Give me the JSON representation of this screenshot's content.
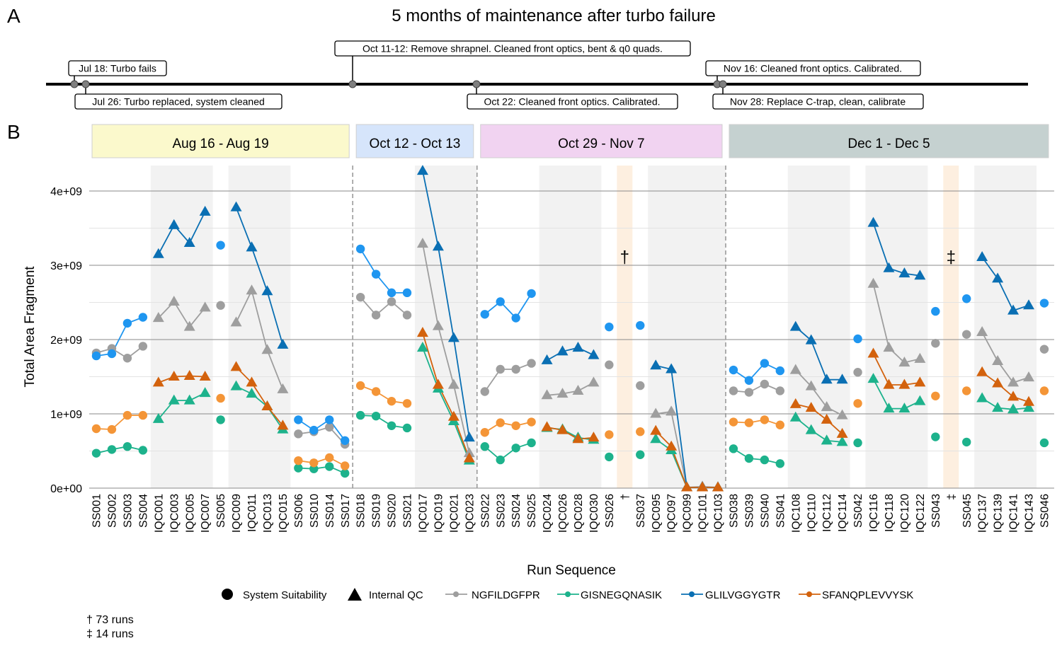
{
  "panel_labels": {
    "a": "A",
    "b": "B"
  },
  "timeline": {
    "title": "5 months of maintenance after turbo failure",
    "events": [
      {
        "label": "Jul 18: Turbo fails",
        "pos": "above"
      },
      {
        "label": "Jul 26: Turbo replaced, system cleaned",
        "pos": "below"
      },
      {
        "label": "Oct 11-12: Remove shrapnel. Cleaned front optics, bent & q0 quads.",
        "pos": "above"
      },
      {
        "label": "Oct 22: Cleaned front optics. Calibrated.",
        "pos": "below"
      },
      {
        "label": "Nov 16: Cleaned front optics. Calibrated.",
        "pos": "above"
      },
      {
        "label": "Nov 28: Replace C-trap, clean, calibrate",
        "pos": "below"
      }
    ]
  },
  "colors": {
    "NGFILDGFPR": "#9e9e9e",
    "GISNEGQNASIK": "#1db28c",
    "GLILVGGYGTR": "#0a6fb3",
    "GLILVGGYGTR_ss": "#1f96f0",
    "SFANQPLEVVYSK": "#d3620d",
    "SFANQPLEVVYSK_ss": "#f49537",
    "grey_band": "#f2f2f2",
    "orange_band": "#fdefe0"
  },
  "chart_data": {
    "type": "line",
    "xlabel": "Run Sequence",
    "ylabel": "Total Area Fragment",
    "ylim": [
      0,
      4400000000.0
    ],
    "yticks": [
      0,
      1000000000.0,
      2000000000.0,
      3000000000.0,
      4000000000.0
    ],
    "ytick_labels": [
      "0e+00",
      "1e+09",
      "2e+09",
      "3e+09",
      "4e+09"
    ],
    "categories": [
      "SS001",
      "SS002",
      "SS003",
      "SS004",
      "IQC001",
      "IQC003",
      "IQC005",
      "IQC007",
      "SS005",
      "IQC009",
      "IQC011",
      "IQC013",
      "IQC015",
      "SS006",
      "SS010",
      "SS014",
      "SS017",
      "SS018",
      "SS019",
      "SS020",
      "SS021",
      "IQC017",
      "IQC019",
      "IQC021",
      "IQC023",
      "SS022",
      "SS023",
      "SS024",
      "SS025",
      "IQC024",
      "IQC026",
      "IQC028",
      "IQC030",
      "SS026",
      "†",
      "SS037",
      "IQC095",
      "IQC097",
      "IQC099",
      "IQC101",
      "IQC103",
      "SS038",
      "SS039",
      "SS040",
      "SS041",
      "IQC108",
      "IQC110",
      "IQC112",
      "IQC114",
      "SS042",
      "IQC116",
      "IQC118",
      "IQC120",
      "IQC122",
      "SS043",
      "‡",
      "SS045",
      "IQC137",
      "IQC139",
      "IQC141",
      "IQC143",
      "SS046"
    ],
    "facets": [
      {
        "label": "Aug 16 - Aug 19",
        "start": 0,
        "end": 16,
        "color": "#fbf9cc"
      },
      {
        "label": "Oct 12 - Oct 13",
        "start": 17,
        "end": 24,
        "color": "#d6e5fb"
      },
      {
        "label": "Oct 29 - Nov 7",
        "start": 25,
        "end": 40,
        "color": "#f1d3f1"
      },
      {
        "label": "Dec 1 - Dec 5",
        "start": 41,
        "end": 61,
        "color": "#c5d1d0"
      }
    ],
    "iqc_bands": [
      [
        4,
        7
      ],
      [
        9,
        12
      ],
      [
        21,
        24
      ],
      [
        29,
        32
      ],
      [
        36,
        40
      ],
      [
        45,
        48
      ],
      [
        50,
        53
      ],
      [
        57,
        60
      ]
    ],
    "gap_bands": [
      34,
      55
    ],
    "gap_markers": [
      {
        "index": 34,
        "symbol": "†",
        "y": 3130000000.0
      },
      {
        "index": 55,
        "symbol": "‡",
        "y": 3130000000.0
      }
    ],
    "runs": [
      [
        0,
        3
      ],
      [
        4,
        7
      ],
      [
        8,
        8
      ],
      [
        9,
        12
      ],
      [
        13,
        16
      ],
      [
        17,
        20
      ],
      [
        21,
        24
      ],
      [
        25,
        28
      ],
      [
        29,
        32
      ],
      [
        33,
        33
      ],
      [
        35,
        35
      ],
      [
        36,
        40
      ],
      [
        41,
        44
      ],
      [
        45,
        48
      ],
      [
        49,
        49
      ],
      [
        50,
        53
      ],
      [
        54,
        54
      ],
      [
        56,
        56
      ],
      [
        57,
        60
      ],
      [
        61,
        61
      ]
    ],
    "series": [
      {
        "name": "NGFILDGFPR",
        "values": [
          1820000000.0,
          1880000000.0,
          1750000000.0,
          1910000000.0,
          2290000000.0,
          2510000000.0,
          2170000000.0,
          2430000000.0,
          2460000000.0,
          2230000000.0,
          2660000000.0,
          1860000000.0,
          1330000000.0,
          730000000.0,
          760000000.0,
          820000000.0,
          590000000.0,
          2570000000.0,
          2330000000.0,
          2510000000.0,
          2330000000.0,
          3290000000.0,
          2180000000.0,
          1390000000.0,
          470000000.0,
          1300000000.0,
          1600000000.0,
          1600000000.0,
          1680000000.0,
          1250000000.0,
          1270000000.0,
          1310000000.0,
          1420000000.0,
          1660000000.0,
          null,
          1380000000.0,
          1000000000.0,
          1030000000.0,
          10000000.0,
          20000000.0,
          10000000.0,
          1310000000.0,
          1290000000.0,
          1400000000.0,
          1310000000.0,
          1590000000.0,
          1370000000.0,
          1090000000.0,
          980000000.0,
          1560000000.0,
          2750000000.0,
          1890000000.0,
          1690000000.0,
          1740000000.0,
          1950000000.0,
          null,
          2070000000.0,
          2100000000.0,
          1710000000.0,
          1420000000.0,
          1490000000.0,
          1870000000.0
        ]
      },
      {
        "name": "GISNEGQNASIK",
        "values": [
          470000000.0,
          520000000.0,
          560000000.0,
          510000000.0,
          930000000.0,
          1180000000.0,
          1180000000.0,
          1280000000.0,
          920000000.0,
          1370000000.0,
          1270000000.0,
          1100000000.0,
          790000000.0,
          270000000.0,
          260000000.0,
          290000000.0,
          200000000.0,
          980000000.0,
          970000000.0,
          840000000.0,
          810000000.0,
          1890000000.0,
          1340000000.0,
          900000000.0,
          370000000.0,
          560000000.0,
          380000000.0,
          540000000.0,
          610000000.0,
          810000000.0,
          790000000.0,
          680000000.0,
          650000000.0,
          420000000.0,
          null,
          450000000.0,
          660000000.0,
          510000000.0,
          10000000.0,
          10000000.0,
          10000000.0,
          530000000.0,
          400000000.0,
          380000000.0,
          330000000.0,
          950000000.0,
          780000000.0,
          640000000.0,
          620000000.0,
          610000000.0,
          1470000000.0,
          1070000000.0,
          1070000000.0,
          1170000000.0,
          690000000.0,
          null,
          620000000.0,
          1210000000.0,
          1080000000.0,
          1060000000.0,
          1080000000.0,
          610000000.0
        ]
      },
      {
        "name": "GLILVGGYGTR",
        "values": [
          1780000000.0,
          1810000000.0,
          2220000000.0,
          2300000000.0,
          3150000000.0,
          3540000000.0,
          3300000000.0,
          3720000000.0,
          3270000000.0,
          3780000000.0,
          3240000000.0,
          2650000000.0,
          1930000000.0,
          920000000.0,
          780000000.0,
          920000000.0,
          640000000.0,
          3220000000.0,
          2880000000.0,
          2630000000.0,
          2630000000.0,
          4270000000.0,
          3250000000.0,
          2020000000.0,
          680000000.0,
          2340000000.0,
          2510000000.0,
          2290000000.0,
          2620000000.0,
          1720000000.0,
          1840000000.0,
          1890000000.0,
          1790000000.0,
          2170000000.0,
          null,
          2190000000.0,
          1650000000.0,
          1600000000.0,
          10000000.0,
          10000000.0,
          10000000.0,
          1590000000.0,
          1450000000.0,
          1680000000.0,
          1580000000.0,
          2170000000.0,
          1990000000.0,
          1460000000.0,
          1460000000.0,
          2010000000.0,
          3570000000.0,
          2960000000.0,
          2890000000.0,
          2860000000.0,
          2380000000.0,
          null,
          2550000000.0,
          3110000000.0,
          2820000000.0,
          2390000000.0,
          2460000000.0,
          2490000000.0
        ]
      },
      {
        "name": "SFANQPLEVVYSK",
        "values": [
          800000000.0,
          790000000.0,
          980000000.0,
          980000000.0,
          1420000000.0,
          1500000000.0,
          1510000000.0,
          1500000000.0,
          1210000000.0,
          1630000000.0,
          1420000000.0,
          1100000000.0,
          840000000.0,
          370000000.0,
          340000000.0,
          410000000.0,
          300000000.0,
          1380000000.0,
          1300000000.0,
          1170000000.0,
          1140000000.0,
          2090000000.0,
          1390000000.0,
          960000000.0,
          400000000.0,
          750000000.0,
          880000000.0,
          840000000.0,
          890000000.0,
          820000000.0,
          780000000.0,
          660000000.0,
          680000000.0,
          720000000.0,
          null,
          760000000.0,
          770000000.0,
          560000000.0,
          10000000.0,
          10000000.0,
          10000000.0,
          890000000.0,
          880000000.0,
          920000000.0,
          850000000.0,
          1130000000.0,
          1080000000.0,
          920000000.0,
          730000000.0,
          1140000000.0,
          1810000000.0,
          1390000000.0,
          1390000000.0,
          1420000000.0,
          1240000000.0,
          null,
          1310000000.0,
          1560000000.0,
          1410000000.0,
          1230000000.0,
          1160000000.0,
          1310000000.0
        ]
      }
    ]
  },
  "legend": {
    "shape_items": [
      {
        "shape": "circle",
        "label": "System Suitability"
      },
      {
        "shape": "triangle",
        "label": "Internal QC"
      }
    ],
    "series_items": [
      "NGFILDGFPR",
      "GISNEGQNASIK",
      "GLILVGGYGTR",
      "SFANQPLEVVYSK"
    ]
  },
  "footnotes": [
    "† 73 runs",
    "‡ 14 runs"
  ]
}
